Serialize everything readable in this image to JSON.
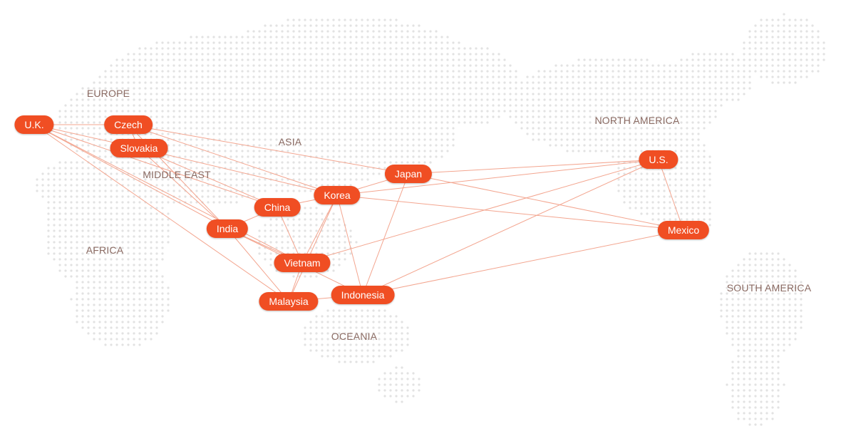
{
  "colors": {
    "pill": "#f04e23",
    "pill_text": "#ffffff",
    "connection": "#f3a58f",
    "dot": "#e2e2e2",
    "region_text": "#8a6a62"
  },
  "regions": [
    {
      "id": "europe",
      "label": "EUROPE"
    },
    {
      "id": "asia",
      "label": "ASIA"
    },
    {
      "id": "middle-east",
      "label": "MIDDLE EAST"
    },
    {
      "id": "africa",
      "label": "AFRICA"
    },
    {
      "id": "oceania",
      "label": "OCEANIA"
    },
    {
      "id": "north-america",
      "label": "NORTH AMERICA"
    },
    {
      "id": "south-america",
      "label": "SOUTH AMERICA"
    }
  ],
  "countries": [
    {
      "id": "uk",
      "label": "U.K."
    },
    {
      "id": "czech",
      "label": "Czech"
    },
    {
      "id": "slovakia",
      "label": "Slovakia"
    },
    {
      "id": "india",
      "label": "India"
    },
    {
      "id": "china",
      "label": "China"
    },
    {
      "id": "korea",
      "label": "Korea"
    },
    {
      "id": "japan",
      "label": "Japan"
    },
    {
      "id": "vietnam",
      "label": "Vietnam"
    },
    {
      "id": "malaysia",
      "label": "Malaysia"
    },
    {
      "id": "indonesia",
      "label": "Indonesia"
    },
    {
      "id": "us",
      "label": "U.S."
    },
    {
      "id": "mexico",
      "label": "Mexico"
    }
  ],
  "connections": [
    [
      "uk",
      "czech"
    ],
    [
      "uk",
      "slovakia"
    ],
    [
      "uk",
      "india"
    ],
    [
      "uk",
      "vietnam"
    ],
    [
      "uk",
      "malaysia"
    ],
    [
      "uk",
      "china"
    ],
    [
      "czech",
      "slovakia"
    ],
    [
      "czech",
      "korea"
    ],
    [
      "czech",
      "japan"
    ],
    [
      "czech",
      "india"
    ],
    [
      "slovakia",
      "korea"
    ],
    [
      "slovakia",
      "china"
    ],
    [
      "slovakia",
      "india"
    ],
    [
      "india",
      "china"
    ],
    [
      "india",
      "vietnam"
    ],
    [
      "india",
      "malaysia"
    ],
    [
      "india",
      "indonesia"
    ],
    [
      "china",
      "korea"
    ],
    [
      "china",
      "vietnam"
    ],
    [
      "korea",
      "japan"
    ],
    [
      "korea",
      "vietnam"
    ],
    [
      "korea",
      "indonesia"
    ],
    [
      "korea",
      "us"
    ],
    [
      "korea",
      "mexico"
    ],
    [
      "japan",
      "indonesia"
    ],
    [
      "japan",
      "us"
    ],
    [
      "japan",
      "mexico"
    ],
    [
      "vietnam",
      "malaysia"
    ],
    [
      "vietnam",
      "us"
    ],
    [
      "malaysia",
      "indonesia"
    ],
    [
      "malaysia",
      "korea"
    ],
    [
      "indonesia",
      "us"
    ],
    [
      "indonesia",
      "mexico"
    ],
    [
      "us",
      "mexico"
    ]
  ]
}
